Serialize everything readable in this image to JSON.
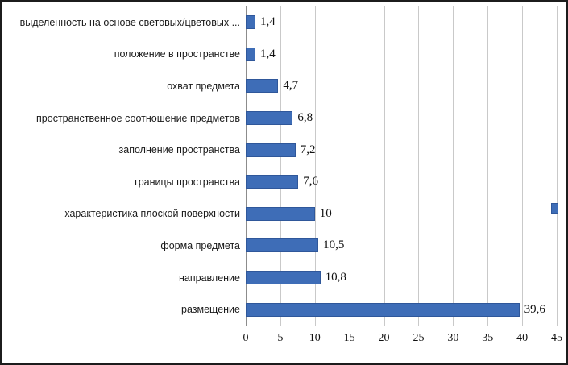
{
  "chart_data": {
    "type": "bar",
    "orientation": "horizontal",
    "title": "",
    "xlabel": "",
    "ylabel": "",
    "categories": [
      "выделенность на основе световых/цветовых ...",
      "положение в пространстве",
      "охват предмета",
      "пространственное соотношение предметов",
      "заполнение пространства",
      "границы пространства",
      "характеристика плоской поверхности",
      "форма предмета",
      "направление",
      "размещение"
    ],
    "values": [
      1.4,
      1.4,
      4.7,
      6.8,
      7.2,
      7.6,
      10,
      10.5,
      10.8,
      39.6
    ],
    "value_labels": [
      "1,4",
      "1,4",
      "4,7",
      "6,8",
      "7,2",
      "7,6",
      "10",
      "10,5",
      "10,8",
      "39,6"
    ],
    "x_ticks": [
      "0",
      "5",
      "10",
      "15",
      "20",
      "25",
      "30",
      "35",
      "40",
      "45"
    ],
    "xlim": [
      0,
      45
    ],
    "grid": true,
    "bar_color": "#3e6db7",
    "gridline_color": "#c9c9c9",
    "legend_position": "partial-marker-right"
  }
}
